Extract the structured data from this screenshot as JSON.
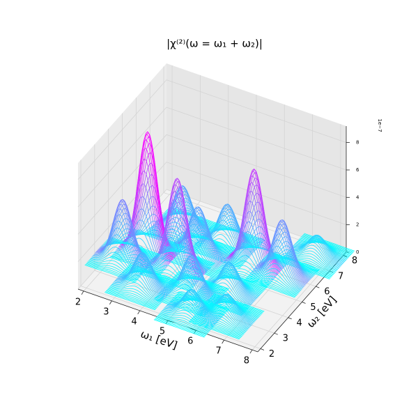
{
  "chart_data": {
    "type": "contour3d",
    "title": "|χ⁽²⁾(ω = ω₁ + ω₂)|",
    "xlabel": "ω₁ [eV]",
    "ylabel": "ω₂ [eV]",
    "z_offset_label": "1e−7",
    "xlim": [
      1.8,
      8.2
    ],
    "ylim": [
      1.8,
      8.2
    ],
    "zlim": [
      0,
      9.2
    ],
    "xticks": [
      2,
      3,
      4,
      5,
      6,
      7,
      8
    ],
    "yticks": [
      2,
      3,
      4,
      5,
      6,
      7,
      8
    ],
    "zticks": [
      0,
      2,
      4,
      6,
      8
    ],
    "colormap": [
      "#00ffff",
      "#ff00ff"
    ],
    "surface": {
      "x": [
        2.8,
        4.0,
        6.0,
        2.3,
        7.0,
        6.0,
        3.5,
        4.8,
        5.0,
        3.2,
        7.5,
        5.5,
        4.2,
        6.5
      ],
      "y": [
        4.8,
        4.5,
        6.0,
        4.0,
        6.0,
        4.2,
        3.0,
        6.5,
        3.5,
        6.5,
        7.5,
        2.5,
        5.6,
        3.0
      ],
      "z": [
        8.8,
        6.6,
        7.0,
        4.4,
        4.0,
        2.2,
        2.5,
        3.0,
        2.8,
        3.2,
        1.5,
        1.8,
        3.4,
        1.6
      ]
    }
  }
}
